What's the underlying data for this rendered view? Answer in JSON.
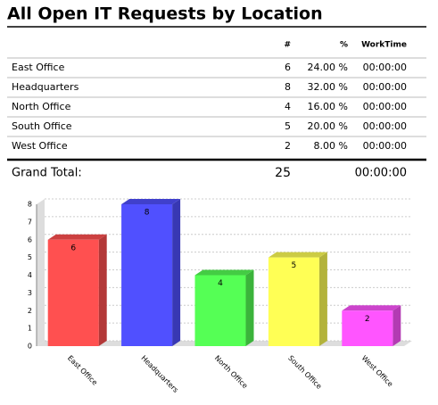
{
  "title": "All Open IT Requests by Location",
  "table": {
    "columns": [
      "#",
      "%",
      "WorkTime"
    ],
    "rows": [
      [
        "East Office",
        "6",
        "24.00 %",
        "00:00:00"
      ],
      [
        "Headquarters",
        "8",
        "32.00 %",
        "00:00:00"
      ],
      [
        "North Office",
        "4",
        "16.00 %",
        "00:00:00"
      ],
      [
        "South Office",
        "5",
        "20.00 %",
        "00:00:00"
      ],
      [
        "West Office",
        "2",
        "8.00 %",
        "00:00:00"
      ]
    ],
    "total": [
      "Grand Total:",
      "25",
      "00:00:00"
    ]
  },
  "chart_data": {
    "type": "bar",
    "categories": [
      "East Office",
      "Headquarters",
      "North Office",
      "South Office",
      "West Office"
    ],
    "values": [
      6,
      8,
      4,
      5,
      2
    ],
    "colors": [
      "#ff5050",
      "#5050ff",
      "#55ff55",
      "#ffff55",
      "#ff55ff"
    ],
    "ylim": [
      0,
      8
    ],
    "yticks": [
      0,
      1,
      2,
      3,
      4,
      5,
      6,
      7,
      8
    ],
    "grid": true
  }
}
